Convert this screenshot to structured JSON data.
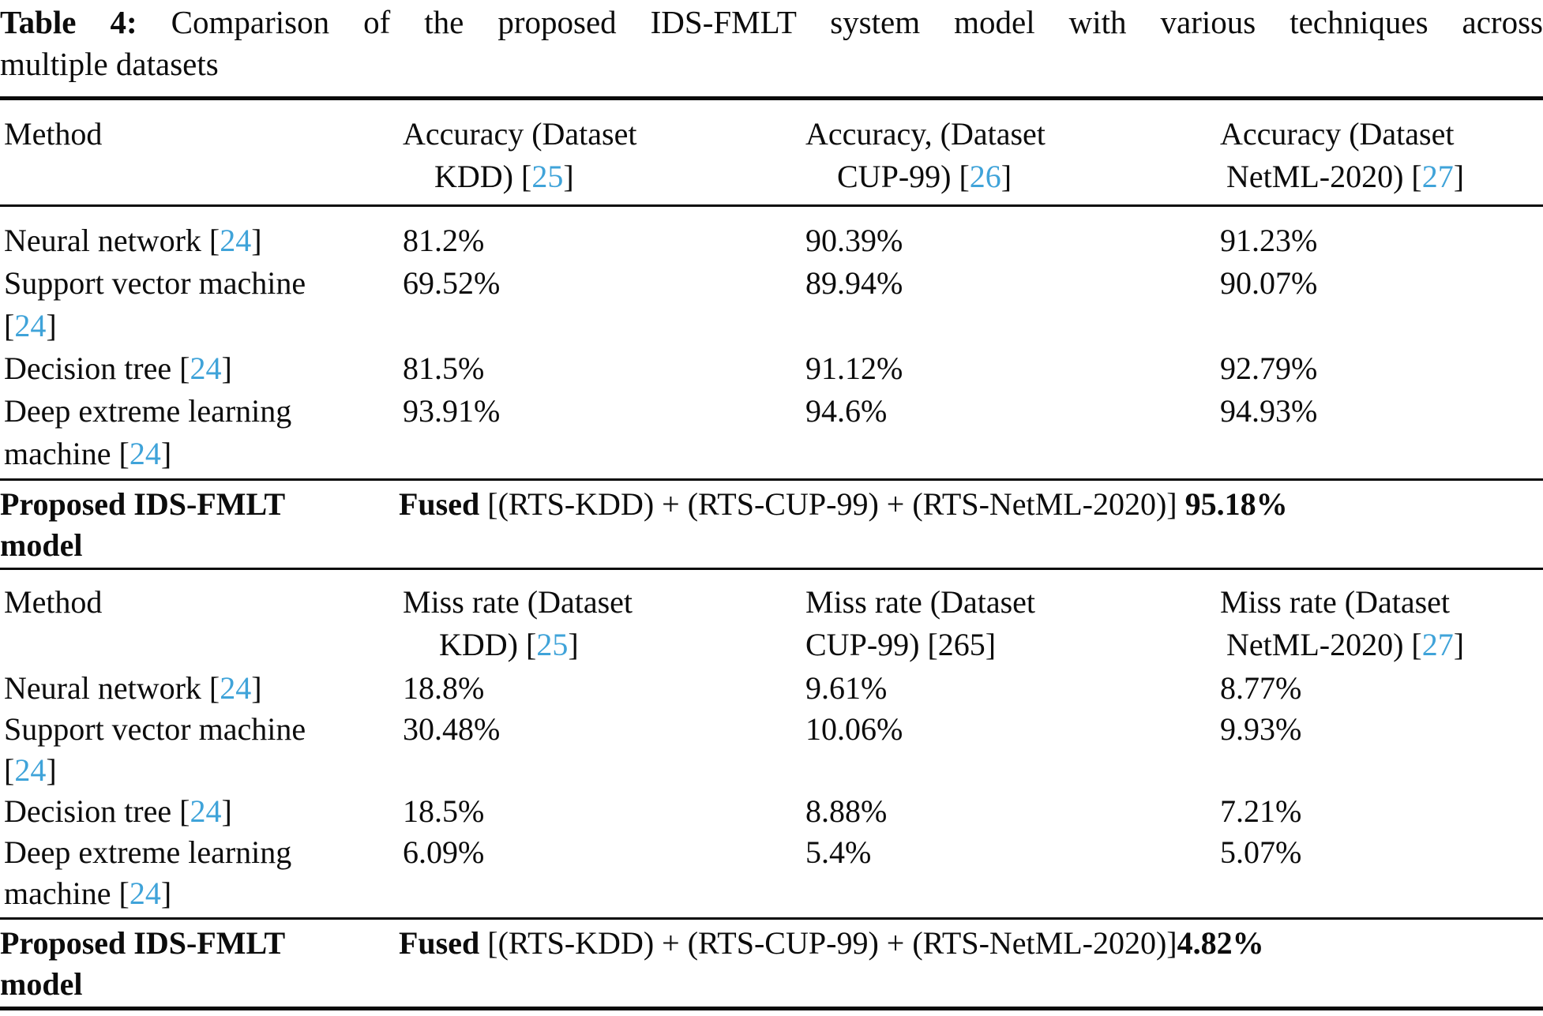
{
  "accent_blue": "#3fa3d9",
  "title": {
    "bold": "Table 4:",
    "line1_rest": " Comparison of the proposed IDS-FMLT system model with various techniques across",
    "line2": "multiple datasets"
  },
  "s1": {
    "header": {
      "c1": "Method",
      "c2": {
        "l1": "Accuracy (Dataset",
        "pre": "KDD) [",
        "cite": "25",
        "post": "]"
      },
      "c3": {
        "l1": "Accuracy, (Dataset",
        "pre": "CUP-99) [",
        "cite": "26",
        "post": "]"
      },
      "c4": {
        "l1": "Accuracy (Dataset",
        "pre": "NetML-2020) [",
        "cite": "27",
        "post": "]"
      }
    },
    "rows": {
      "nn": {
        "pre": "Neural network [",
        "cite": "24",
        "post": "]",
        "v1": "81.2%",
        "v2": "90.39%",
        "v3": "91.23%"
      },
      "svm": {
        "line1": "Support vector machine",
        "pre": "[",
        "cite": "24",
        "post": "]",
        "v1": "69.52%",
        "v2": "89.94%",
        "v3": "90.07%"
      },
      "dt": {
        "pre": "Decision tree [",
        "cite": "24",
        "post": "]",
        "v1": "81.5%",
        "v2": "91.12%",
        "v3": "92.79%"
      },
      "delm": {
        "line1": "Deep extreme learning",
        "pre": "machine [",
        "cite": "24",
        "post": "]",
        "v1": "93.91%",
        "v2": "94.6%",
        "v3": "94.93%"
      }
    },
    "proposed": {
      "label_l1": "Proposed IDS-FMLT",
      "label_l2": "model",
      "fused_bold": "Fused",
      "fused_body": " [(RTS-KDD) + (RTS-CUP-99) + (RTS-NetML-2020)] ",
      "fused_value": "95.18%"
    }
  },
  "s2": {
    "header": {
      "c1": "Method",
      "c2": {
        "l1": "Miss rate (Dataset",
        "pre": "KDD) [",
        "cite": "25",
        "post": "]"
      },
      "c3": {
        "l1": "Miss rate (Dataset",
        "pre": "CUP-99) [265]"
      },
      "c4": {
        "l1": "Miss rate (Dataset",
        "pre": "NetML-2020) [",
        "cite": "27",
        "post": "]"
      }
    },
    "rows": {
      "nn": {
        "pre": "Neural network [",
        "cite": "24",
        "post": "]",
        "v1": "18.8%",
        "v2": "9.61%",
        "v3": "8.77%"
      },
      "svm": {
        "line1": "Support vector machine",
        "pre": "[",
        "cite": "24",
        "post": "]",
        "v1": "30.48%",
        "v2": "10.06%",
        "v3": "9.93%"
      },
      "dt": {
        "pre": "Decision tree [",
        "cite": "24",
        "post": "]",
        "v1": "18.5%",
        "v2": "8.88%",
        "v3": "7.21%"
      },
      "delm": {
        "line1": "Deep extreme learning",
        "pre": "machine [",
        "cite": "24",
        "post": "]",
        "v1": "6.09%",
        "v2": "5.4%",
        "v3": "5.07%"
      }
    },
    "proposed": {
      "label_l1": "Proposed IDS-FMLT",
      "label_l2": "model",
      "fused_bold": "Fused",
      "fused_body": " [(RTS-KDD) + (RTS-CUP-99) + (RTS-NetML-2020)]",
      "fused_value": "4.82%"
    }
  }
}
